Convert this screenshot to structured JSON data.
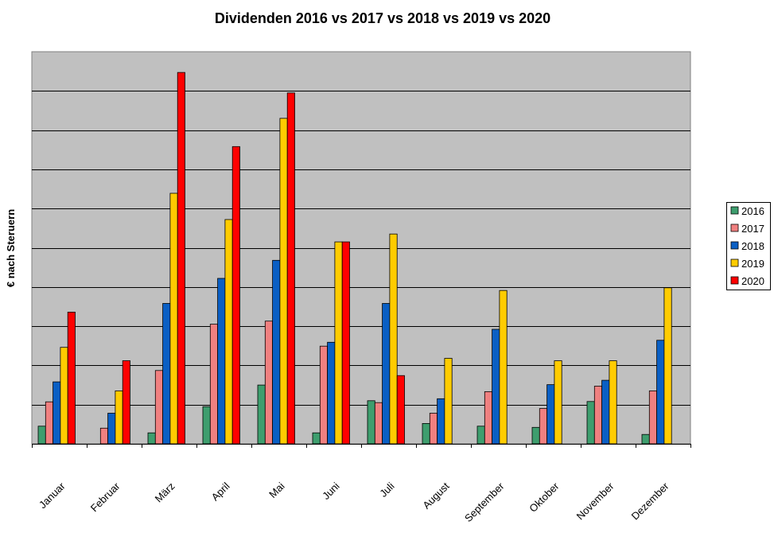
{
  "chart_data": {
    "type": "bar",
    "title": "Dividenden 2016 vs 2017 vs 2018 vs 2019 vs 2020",
    "xlabel": "",
    "ylabel": "€ nach Steruern",
    "ylim": [
      0,
      10
    ],
    "grid": true,
    "legend_position": "right",
    "categories": [
      "Januar",
      "Februar",
      "März",
      "April",
      "Mai",
      "Juni",
      "Juli",
      "August",
      "September",
      "Oktober",
      "November",
      "Dezember"
    ],
    "series": [
      {
        "name": "2016",
        "color": "#3e9e6e",
        "values": [
          0.45,
          0,
          0.28,
          0.95,
          1.5,
          0.28,
          1.1,
          0.52,
          0.45,
          0.42,
          1.08,
          0.24
        ]
      },
      {
        "name": "2017",
        "color": "#f08080",
        "values": [
          1.07,
          0.4,
          1.87,
          3.05,
          3.13,
          2.49,
          1.05,
          0.78,
          1.33,
          0.9,
          1.47,
          1.35
        ]
      },
      {
        "name": "2018",
        "color": "#0a5fc4",
        "values": [
          1.58,
          0.78,
          3.58,
          4.22,
          4.68,
          2.59,
          3.58,
          1.15,
          2.92,
          1.51,
          1.62,
          2.64
        ]
      },
      {
        "name": "2019",
        "color": "#ffcc00",
        "values": [
          2.46,
          1.35,
          6.39,
          5.72,
          8.3,
          5.15,
          5.35,
          2.18,
          3.91,
          2.12,
          2.12,
          3.98
        ]
      },
      {
        "name": "2020",
        "color": "#ff0000",
        "values": [
          3.36,
          2.12,
          9.47,
          7.58,
          8.95,
          5.15,
          1.74,
          0,
          0,
          0,
          0,
          0
        ]
      }
    ]
  }
}
